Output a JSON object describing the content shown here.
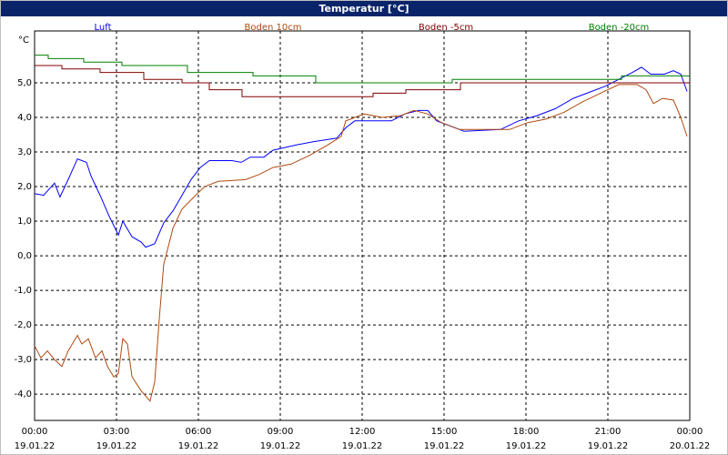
{
  "chart_data": {
    "type": "line",
    "title": "Temperatur [°C]",
    "y_unit": "°C",
    "xlim": [
      0,
      24
    ],
    "ylim": [
      -4.76,
      6.5
    ],
    "grid": true,
    "xticks": [
      {
        "value": 0,
        "label": "00:00"
      },
      {
        "value": 3,
        "label": "03:00"
      },
      {
        "value": 6,
        "label": "06:00"
      },
      {
        "value": 9,
        "label": "09:00"
      },
      {
        "value": 12,
        "label": "12:00"
      },
      {
        "value": 15,
        "label": "15:00"
      },
      {
        "value": 18,
        "label": "18:00"
      },
      {
        "value": 21,
        "label": "21:00"
      },
      {
        "value": 24,
        "label": "00:00"
      }
    ],
    "xtick_dates": [
      "19.01.22",
      "19.01.22",
      "19.01.22",
      "19.01.22",
      "19.01.22",
      "19.01.22",
      "19.01.22",
      "19.01.22",
      "20.01.22"
    ],
    "yticks": [
      {
        "value": -4,
        "label": "-4,0"
      },
      {
        "value": -3,
        "label": "-3,0"
      },
      {
        "value": -2,
        "label": "-2,0"
      },
      {
        "value": -1,
        "label": "-1,0"
      },
      {
        "value": 0,
        "label": "0,0"
      },
      {
        "value": 1,
        "label": "1,0"
      },
      {
        "value": 2,
        "label": "2,0"
      },
      {
        "value": 3,
        "label": "3,0"
      },
      {
        "value": 4,
        "label": "4,0"
      },
      {
        "value": 5,
        "label": "5,0"
      }
    ],
    "series": [
      {
        "name": "Luft",
        "color": "#0000ff",
        "x": [
          0,
          0.33,
          0.73,
          0.93,
          1.23,
          1.57,
          1.9,
          2.07,
          2.4,
          2.73,
          3.07,
          3.23,
          3.57,
          3.9,
          4.07,
          4.4,
          4.73,
          5.07,
          5.4,
          5.73,
          6.07,
          6.4,
          7.23,
          7.57,
          7.9,
          8.4,
          8.73,
          9.57,
          10.23,
          11.07,
          11.4,
          11.73,
          13.07,
          13.57,
          14.07,
          14.4,
          14.73,
          15.23,
          15.73,
          17.07,
          17.73,
          18.4,
          19.07,
          19.73,
          20.4,
          20.9,
          21.4,
          21.9,
          22.23,
          22.57,
          23.07,
          23.4,
          23.67,
          23.9
        ],
        "values": [
          1.8,
          1.75,
          2.1,
          1.7,
          2.2,
          2.8,
          2.7,
          2.3,
          1.75,
          1.15,
          0.6,
          1.0,
          0.55,
          0.4,
          0.25,
          0.35,
          0.95,
          1.3,
          1.75,
          2.2,
          2.55,
          2.75,
          2.75,
          2.7,
          2.85,
          2.85,
          3.05,
          3.2,
          3.3,
          3.4,
          3.7,
          3.9,
          3.9,
          4.1,
          4.2,
          4.2,
          3.9,
          3.75,
          3.6,
          3.65,
          3.9,
          4.05,
          4.25,
          4.55,
          4.75,
          4.9,
          5.1,
          5.3,
          5.45,
          5.25,
          5.25,
          5.35,
          5.25,
          4.75
        ]
      },
      {
        "name": "Boden 10cm",
        "color": "#b04a10",
        "x": [
          0,
          0.23,
          0.47,
          0.73,
          1.0,
          1.23,
          1.57,
          1.73,
          1.97,
          2.23,
          2.47,
          2.67,
          2.9,
          3.07,
          3.23,
          3.4,
          3.57,
          3.9,
          4.23,
          4.4,
          4.57,
          4.73,
          5.07,
          5.4,
          5.9,
          6.23,
          6.73,
          7.73,
          8.23,
          8.73,
          9.4,
          10.07,
          10.73,
          11.23,
          11.4,
          12.07,
          12.73,
          13.4,
          13.9,
          14.4,
          14.9,
          15.57,
          17.4,
          18.07,
          18.73,
          19.4,
          20.07,
          20.73,
          21.4,
          22.07,
          22.4,
          22.67,
          23.0,
          23.4,
          23.67,
          23.9
        ],
        "values": [
          -2.6,
          -2.95,
          -2.75,
          -3.0,
          -3.2,
          -2.75,
          -2.3,
          -2.55,
          -2.4,
          -2.95,
          -2.75,
          -3.2,
          -3.5,
          -3.4,
          -2.4,
          -2.55,
          -3.5,
          -3.9,
          -4.2,
          -3.65,
          -1.8,
          -0.25,
          0.8,
          1.35,
          1.75,
          2.0,
          2.15,
          2.2,
          2.35,
          2.55,
          2.65,
          2.9,
          3.2,
          3.45,
          3.9,
          4.1,
          4.0,
          4.05,
          4.2,
          4.1,
          3.85,
          3.65,
          3.65,
          3.85,
          3.95,
          4.15,
          4.45,
          4.7,
          4.95,
          4.95,
          4.8,
          4.4,
          4.55,
          4.5,
          4.0,
          3.45
        ]
      },
      {
        "name": "Boden -5cm",
        "color": "#800000",
        "x": [
          0,
          1,
          1,
          2.4,
          2.4,
          4,
          4,
          5.4,
          5.4,
          6.4,
          6.4,
          7.6,
          7.6,
          12.4,
          12.4,
          13.6,
          13.6,
          15.6,
          15.6,
          24
        ],
        "values": [
          5.5,
          5.5,
          5.4,
          5.4,
          5.3,
          5.3,
          5.1,
          5.1,
          5.0,
          5.0,
          4.8,
          4.8,
          4.6,
          4.6,
          4.7,
          4.7,
          4.8,
          4.8,
          5.0,
          5.0
        ]
      },
      {
        "name": "Boden -20cm",
        "color": "#008000",
        "x": [
          0,
          0.5,
          0.5,
          1.8,
          1.8,
          3.2,
          3.2,
          5.6,
          5.6,
          8,
          8,
          10.3,
          10.3,
          15.3,
          15.3,
          21.5,
          21.5,
          24
        ],
        "values": [
          5.8,
          5.8,
          5.7,
          5.7,
          5.6,
          5.6,
          5.5,
          5.5,
          5.3,
          5.3,
          5.2,
          5.2,
          5.0,
          5.0,
          5.1,
          5.1,
          5.2,
          5.2
        ]
      }
    ]
  }
}
